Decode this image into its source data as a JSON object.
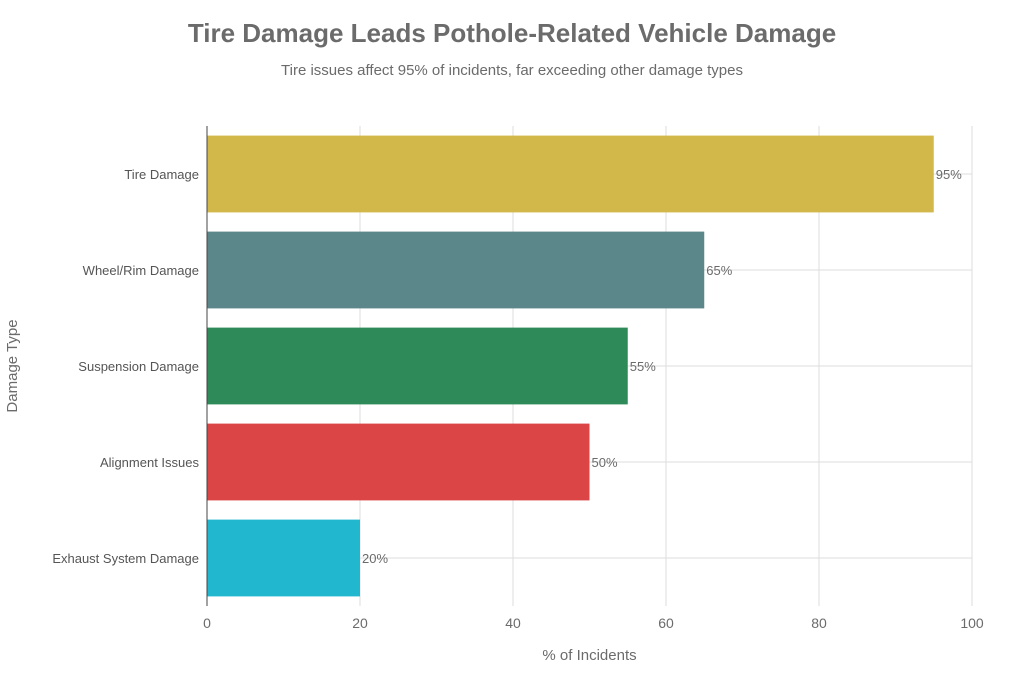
{
  "chart_data": {
    "type": "bar",
    "orientation": "horizontal",
    "title": "Tire Damage Leads Pothole-Related Vehicle Damage",
    "subtitle": "Tire issues affect 95% of incidents, far exceeding other damage types",
    "xlabel": "% of Incidents",
    "ylabel": "Damage Type",
    "xlim": [
      0,
      100
    ],
    "xticks": [
      0,
      20,
      40,
      60,
      80,
      100
    ],
    "grid": true,
    "categories": [
      "Tire Damage",
      "Wheel/Rim Damage",
      "Suspension Damage",
      "Alignment Issues",
      "Exhaust System Damage"
    ],
    "values": [
      95,
      65,
      55,
      50,
      20
    ],
    "value_labels": [
      "95%",
      "65%",
      "55%",
      "50%",
      "20%"
    ],
    "colors": [
      "#d2b84b",
      "#5c878a",
      "#2e8a58",
      "#dc4545",
      "#21b8cf"
    ]
  }
}
